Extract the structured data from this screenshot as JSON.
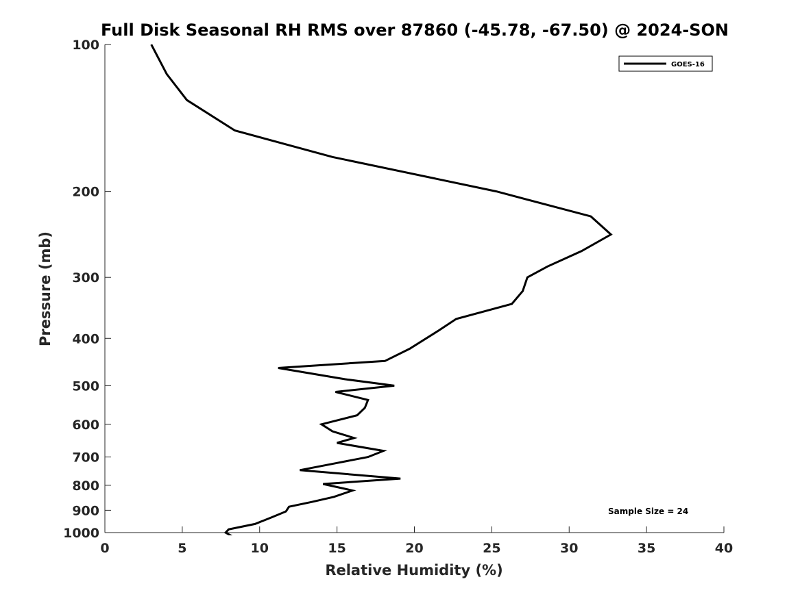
{
  "chart_data": {
    "type": "line",
    "title": "Full Disk Seasonal RH RMS over 87860 (-45.78, -67.50) @ 2024-SON",
    "xlabel": "Relative Humidity (%)",
    "ylabel": "Pressure (mb)",
    "xlim": [
      0,
      40
    ],
    "ylim": [
      100,
      1000
    ],
    "y_scale": "log",
    "y_reversed": true,
    "x_ticks": [
      0,
      5,
      10,
      15,
      20,
      25,
      30,
      35,
      40
    ],
    "x_tick_labels": [
      "0",
      "5",
      "10",
      "15",
      "20",
      "25",
      "30",
      "35",
      "40"
    ],
    "y_ticks": [
      100,
      200,
      300,
      400,
      500,
      600,
      700,
      800,
      900,
      1000
    ],
    "y_tick_labels": [
      "100",
      "200",
      "300",
      "400",
      "500",
      "600",
      "700",
      "800",
      "900",
      "1000"
    ],
    "legend": {
      "entries": [
        "GOES-16"
      ],
      "location": "top-right"
    },
    "annotation": "Sample Size = 24",
    "series": [
      {
        "name": "GOES-16",
        "color": "#000000",
        "x": [
          3.0,
          4.0,
          5.3,
          8.4,
          14.7,
          25.3,
          31.4,
          32.7,
          30.8,
          28.6,
          27.3,
          27.0,
          26.3,
          22.7,
          21.6,
          19.7,
          18.1,
          11.2,
          15.5,
          18.7,
          14.9,
          17.0,
          16.8,
          16.3,
          14.0,
          14.7,
          16.1,
          15.0,
          18.0,
          17.0,
          15.0,
          12.6,
          19.1,
          14.1,
          16.0,
          14.8,
          13.4,
          11.9,
          11.7,
          10.8,
          9.7,
          8.0,
          7.8,
          8.4
        ],
        "y": [
          100,
          115,
          130,
          150,
          170,
          200,
          225,
          245,
          265,
          285,
          300,
          320,
          340,
          365,
          385,
          420,
          445,
          460,
          485,
          500,
          515,
          535,
          555,
          575,
          600,
          620,
          640,
          655,
          680,
          700,
          720,
          745,
          775,
          795,
          820,
          845,
          865,
          885,
          905,
          930,
          960,
          985,
          1000,
          1025
        ]
      }
    ]
  }
}
